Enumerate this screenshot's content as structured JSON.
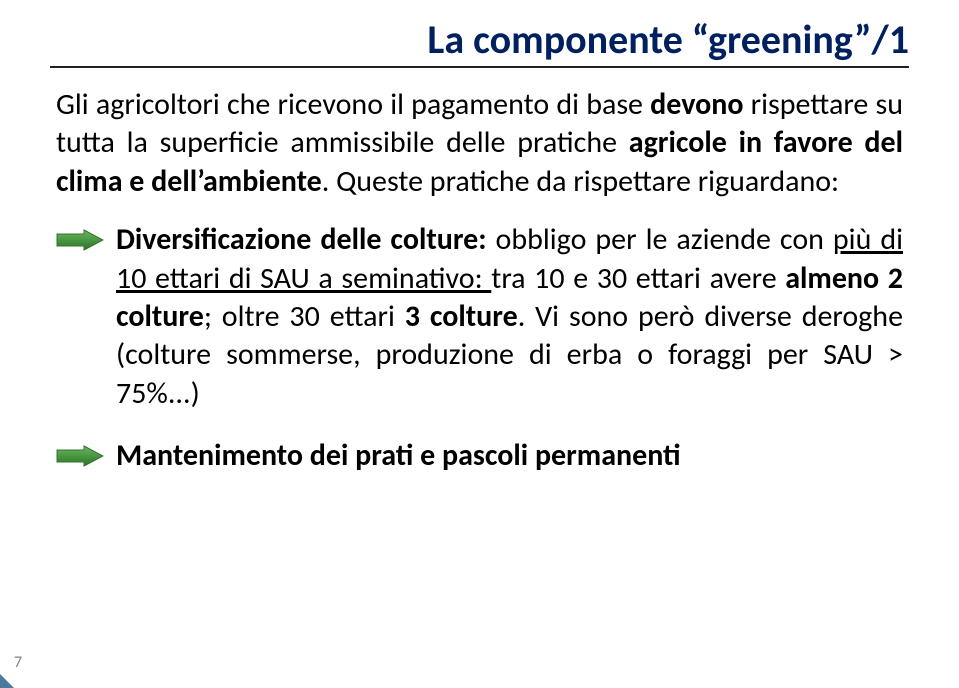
{
  "colors": {
    "title_color": "#002060",
    "body_color": "#000000",
    "rule_color": "#222222",
    "arrow_fill": "linear-gradient(180deg,#5aa34d 0%,#2f7a2a 100%)",
    "arrow_fill_hex_top": "#55a048",
    "arrow_fill_hex_bot": "#2c7627",
    "arrow_stroke": "#3a6f33",
    "corner_fill": "#4a7a9e",
    "page_num_color": "#7f8487"
  },
  "fonts": {
    "title_size_pt": 30,
    "body_size_pt": 22,
    "title_weight": 700
  },
  "title": "La componente “greening”/1",
  "intro_html": "Gli agricoltori che ricevono il pagamento di base <b>devono</b> rispettare su tutta la superficie ammissibile delle pratiche <b>agricole in favore del clima e dell’ambiente</b>. Queste pratiche da rispettare riguardano:",
  "bullets": [
    {
      "html": "<b>Diversificazione delle colture:</b> obbligo per le aziende con <u>più di 10 ettari di SAU a seminativo: </u>tra 10 e 30 ettari avere <b>almeno 2 colture</b>; oltre 30 ettari <b>3 colture</b>. Vi sono però diverse deroghe (colture sommerse, produzione di erba o foraggi per SAU > 75%...)"
    },
    {
      "html": "<b>Mantenimento dei prati e pascoli permanenti</b>"
    }
  ],
  "page_number": "7"
}
